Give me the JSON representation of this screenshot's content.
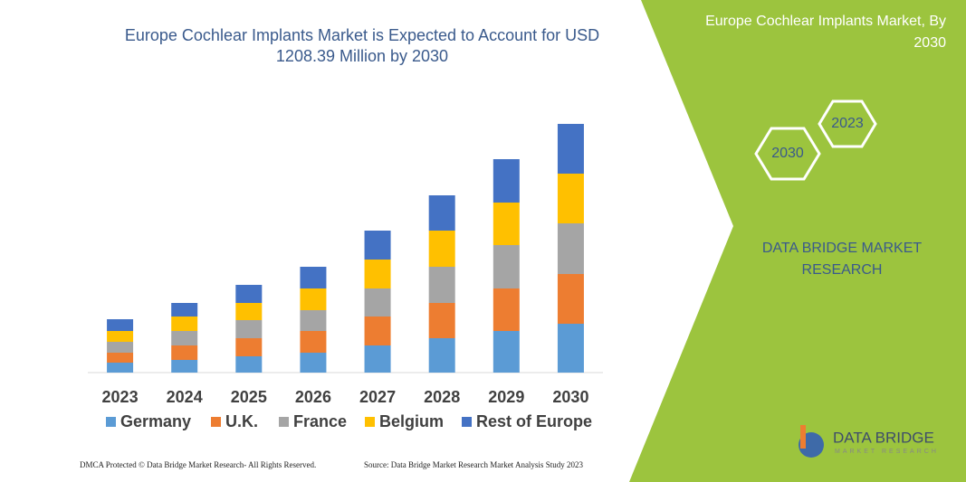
{
  "chart_data": {
    "type": "stacked-bar",
    "title": "Europe Cochlear Implants Market is Expected to Account for USD 1208.39 Million by 2030",
    "categories": [
      "2023",
      "2024",
      "2025",
      "2026",
      "2027",
      "2028",
      "2029",
      "2030"
    ],
    "series": [
      {
        "name": "Germany",
        "color": "#5b9bd5",
        "values": [
          11,
          14,
          18,
          22,
          30,
          38,
          46,
          54
        ]
      },
      {
        "name": "U.K.",
        "color": "#ed7d31",
        "values": [
          11,
          16,
          20,
          24,
          32,
          39,
          47,
          55
        ]
      },
      {
        "name": "France",
        "color": "#a5a5a5",
        "values": [
          12,
          16,
          20,
          23,
          31,
          40,
          48,
          56
        ]
      },
      {
        "name": "Belgium",
        "color": "#ffc000",
        "values": [
          12,
          16,
          19,
          24,
          32,
          40,
          47,
          55
        ]
      },
      {
        "name": "Rest of Europe",
        "color": "#4472c4",
        "values": [
          13,
          15,
          20,
          24,
          32,
          39,
          48,
          55
        ]
      }
    ],
    "ylim": [
      0,
      290
    ]
  },
  "panel": {
    "title": "Europe Cochlear Implants Market, By 2030",
    "hexagons": [
      "2030",
      "2023"
    ],
    "brand": "DATA BRIDGE MARKET RESEARCH"
  },
  "logo": {
    "name": "DATA BRIDGE",
    "tagline": "MARKET RESEARCH"
  },
  "footer": {
    "left": "DMCA Protected © Data Bridge Market Research- All Rights Reserved.",
    "right": "Source: Data Bridge Market Research Market Analysis Study 2023"
  }
}
